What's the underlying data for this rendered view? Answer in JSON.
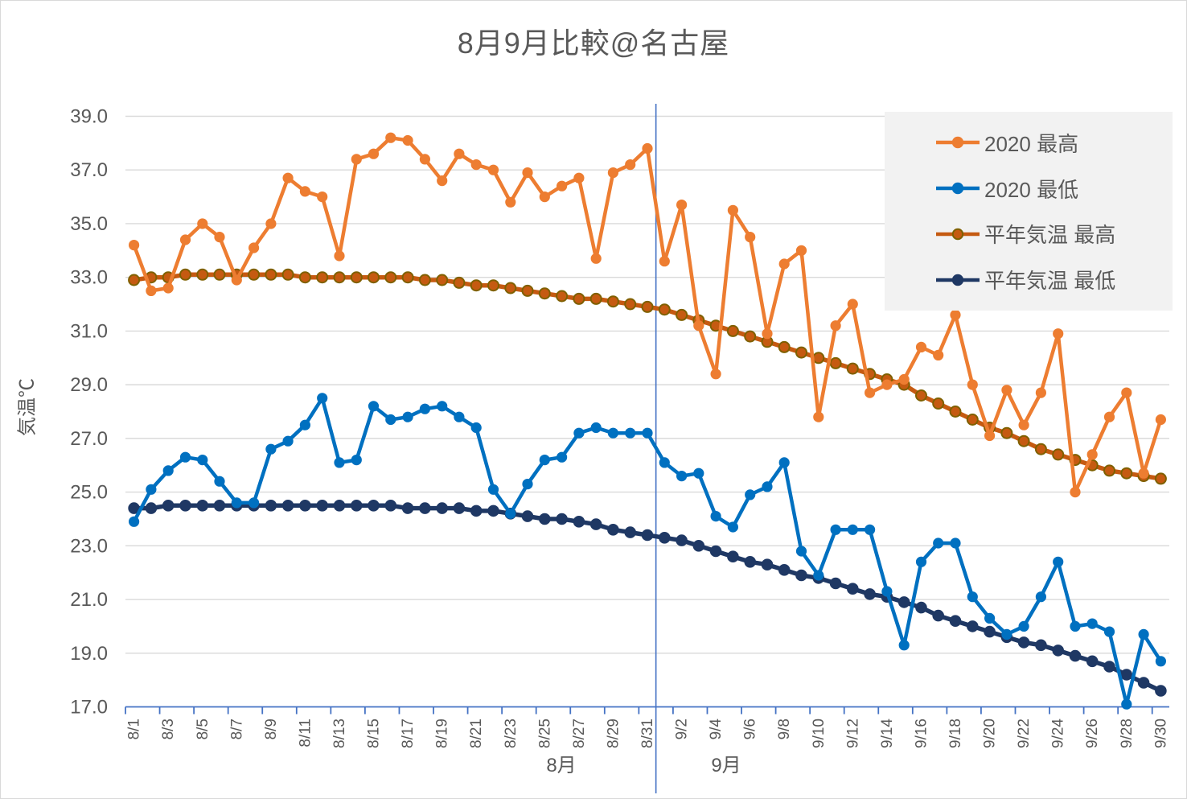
{
  "chart_data": {
    "type": "line",
    "title": "8月9月比較@名古屋",
    "ylabel": "気温℃",
    "grid": true,
    "legend_position": "upper-right",
    "y_axis": {
      "min": 17,
      "max": 39,
      "step": 2
    },
    "y_tick_labels": [
      "17.0",
      "19.0",
      "21.0",
      "23.0",
      "25.0",
      "27.0",
      "29.0",
      "31.0",
      "33.0",
      "35.0",
      "37.0",
      "39.0"
    ],
    "x_tick_interval": 2,
    "month_groups": [
      {
        "label": "8月",
        "days": 31
      },
      {
        "label": "9月",
        "days": 30
      }
    ],
    "categories": [
      "8/1",
      "8/2",
      "8/3",
      "8/4",
      "8/5",
      "8/6",
      "8/7",
      "8/8",
      "8/9",
      "8/10",
      "8/11",
      "8/12",
      "8/13",
      "8/14",
      "8/15",
      "8/16",
      "8/17",
      "8/18",
      "8/19",
      "8/20",
      "8/21",
      "8/22",
      "8/23",
      "8/24",
      "8/25",
      "8/26",
      "8/27",
      "8/28",
      "8/29",
      "8/30",
      "8/31",
      "9/1",
      "9/2",
      "9/3",
      "9/4",
      "9/5",
      "9/6",
      "9/7",
      "9/8",
      "9/9",
      "9/10",
      "9/11",
      "9/12",
      "9/13",
      "9/14",
      "9/15",
      "9/16",
      "9/17",
      "9/18",
      "9/19",
      "9/20",
      "9/21",
      "9/22",
      "9/23",
      "9/24",
      "9/25",
      "9/26",
      "9/27",
      "9/28",
      "9/29",
      "9/30"
    ],
    "series": [
      {
        "id": "high-2020",
        "name": "2020 最高",
        "color": "#ED7D31",
        "marker_color": "#ED7D31",
        "marker_stroke": "#ED7D31",
        "line_width": 4.5,
        "marker_radius": 5.6,
        "values": [
          34.2,
          32.5,
          32.6,
          34.4,
          35.0,
          34.5,
          32.9,
          34.1,
          35.0,
          36.7,
          36.2,
          36.0,
          33.8,
          37.4,
          37.6,
          38.2,
          38.1,
          37.4,
          36.6,
          37.6,
          37.2,
          37.0,
          35.8,
          36.9,
          36.0,
          36.4,
          36.7,
          33.7,
          36.9,
          37.2,
          37.8,
          33.6,
          35.7,
          31.2,
          29.4,
          35.5,
          34.5,
          30.9,
          33.5,
          34.0,
          27.8,
          31.2,
          32.0,
          28.7,
          29.0,
          29.2,
          30.4,
          30.1,
          31.6,
          29.0,
          27.1,
          28.8,
          27.5,
          28.7,
          30.9,
          25.0,
          26.4,
          27.8,
          28.7,
          25.7,
          27.7
        ]
      },
      {
        "id": "low-2020",
        "name": "2020 最低",
        "color": "#0070C0",
        "marker_color": "#0070C0",
        "marker_stroke": "#0070C0",
        "line_width": 4.5,
        "marker_radius": 5.6,
        "values": [
          23.9,
          25.1,
          25.8,
          26.3,
          26.2,
          25.4,
          24.6,
          24.6,
          26.6,
          26.9,
          27.5,
          28.5,
          26.1,
          26.2,
          28.2,
          27.7,
          27.8,
          28.1,
          28.2,
          27.8,
          27.4,
          25.1,
          24.2,
          25.3,
          26.2,
          26.3,
          27.2,
          27.4,
          27.2,
          27.2,
          27.2,
          26.1,
          25.6,
          25.7,
          24.1,
          23.7,
          24.9,
          25.2,
          26.1,
          22.8,
          21.9,
          23.6,
          23.6,
          23.6,
          21.3,
          19.3,
          22.4,
          23.1,
          23.1,
          21.1,
          20.3,
          19.7,
          20.0,
          21.1,
          22.4,
          20.0,
          20.1,
          19.8,
          17.1,
          19.7,
          18.7
        ]
      },
      {
        "id": "avg-high",
        "name": "平年気温 最高",
        "color": "#C55A11",
        "marker_color": "#C55A11",
        "marker_stroke": "#7F6000",
        "line_width": 5.5,
        "marker_radius": 6.5,
        "values": [
          32.9,
          33.0,
          33.0,
          33.1,
          33.1,
          33.1,
          33.1,
          33.1,
          33.1,
          33.1,
          33.0,
          33.0,
          33.0,
          33.0,
          33.0,
          33.0,
          33.0,
          32.9,
          32.9,
          32.8,
          32.7,
          32.7,
          32.6,
          32.5,
          32.4,
          32.3,
          32.2,
          32.2,
          32.1,
          32.0,
          31.9,
          31.8,
          31.6,
          31.4,
          31.2,
          31.0,
          30.8,
          30.6,
          30.4,
          30.2,
          30.0,
          29.8,
          29.6,
          29.4,
          29.2,
          29.0,
          28.6,
          28.3,
          28.0,
          27.7,
          27.4,
          27.2,
          26.9,
          26.6,
          26.4,
          26.2,
          26.0,
          25.8,
          25.7,
          25.6,
          25.5
        ]
      },
      {
        "id": "avg-low",
        "name": "平年気温 最低",
        "color": "#1F3864",
        "marker_color": "#1F3864",
        "marker_stroke": "#1F3864",
        "line_width": 5.5,
        "marker_radius": 6.3,
        "values": [
          24.4,
          24.4,
          24.5,
          24.5,
          24.5,
          24.5,
          24.5,
          24.5,
          24.5,
          24.5,
          24.5,
          24.5,
          24.5,
          24.5,
          24.5,
          24.5,
          24.4,
          24.4,
          24.4,
          24.4,
          24.3,
          24.3,
          24.2,
          24.1,
          24.0,
          24.0,
          23.9,
          23.8,
          23.6,
          23.5,
          23.4,
          23.3,
          23.2,
          23.0,
          22.8,
          22.6,
          22.4,
          22.3,
          22.1,
          21.9,
          21.8,
          21.6,
          21.4,
          21.2,
          21.1,
          20.9,
          20.7,
          20.4,
          20.2,
          20.0,
          19.8,
          19.6,
          19.4,
          19.3,
          19.1,
          18.9,
          18.7,
          18.5,
          18.2,
          17.9,
          17.6
        ]
      }
    ]
  },
  "colors": {
    "background": "#FFFFFF",
    "gridline": "#D9D9D9",
    "axis": "#4472C4",
    "text": "#595959",
    "legend_bg": "#F2F2F2"
  }
}
